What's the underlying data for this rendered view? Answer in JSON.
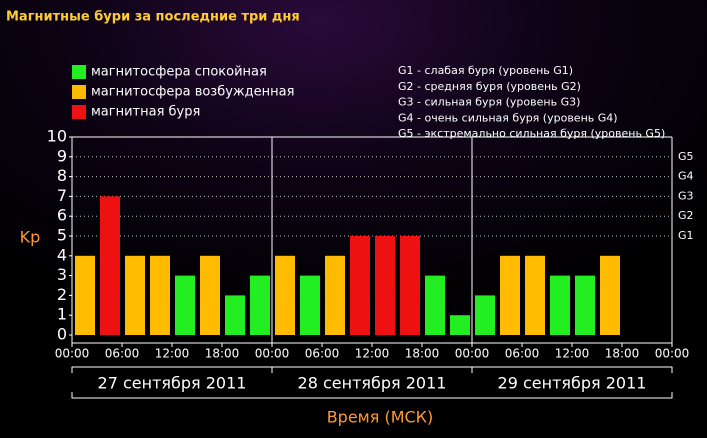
{
  "chart_data": {
    "type": "bar",
    "title": "Магнитные бури за последние три дня",
    "legend": [
      {
        "name": "магнитосфера спокойная",
        "color": "#22ee22"
      },
      {
        "name": "магнитосфера возбужденная",
        "color": "#ffbb00"
      },
      {
        "name": "магнитная буря",
        "color": "#ee1111"
      }
    ],
    "notes": [
      "G1 - слабая буря (уровень G1)",
      "G2 - средняя буря (уровень G2)",
      "G3 - сильная буря (уровень G3)",
      "G4 - очень сильная буря (уровень G4)",
      "G5 - экстремально сильная буря (уровень G5)"
    ],
    "y_label": "Kp",
    "x_label": "Время (МСК)",
    "days": [
      "27 сентября 2011",
      "28 сентября 2011",
      "29 сентября 2011"
    ],
    "categories": [
      null,
      null,
      null,
      null,
      null,
      null,
      null,
      null,
      null,
      null,
      null,
      null,
      null,
      null,
      null,
      null,
      null,
      null,
      null,
      null,
      null,
      null,
      null,
      null
    ],
    "values": [
      4,
      7,
      4,
      4,
      3,
      4,
      2,
      3,
      4,
      3,
      4,
      5,
      5,
      5,
      3,
      1,
      2,
      4,
      4,
      3,
      3,
      4,
      null,
      null
    ],
    "colors": [
      "#ffbb00",
      "#ee1111",
      "#ffbb00",
      "#ffbb00",
      "#22ee22",
      "#ffbb00",
      "#22ee22",
      "#22ee22",
      "#ffbb00",
      "#22ee22",
      "#ffbb00",
      "#ee1111",
      "#ee1111",
      "#ee1111",
      "#22ee22",
      "#22ee22",
      "#22ee22",
      "#ffbb00",
      "#ffbb00",
      "#22ee22",
      "#22ee22",
      "#ffbb00",
      null,
      null
    ],
    "xlim": [
      0,
      24
    ],
    "xticks": [
      {
        "value": 0,
        "label": "00:00"
      },
      {
        "value": 2,
        "label": "06:00"
      },
      {
        "value": 4,
        "label": "12:00"
      },
      {
        "value": 6,
        "label": "18:00"
      },
      {
        "value": 8,
        "label": "00:00"
      },
      {
        "value": 10,
        "label": "06:00"
      },
      {
        "value": 12,
        "label": "12:00"
      },
      {
        "value": 14,
        "label": "18:00"
      },
      {
        "value": 16,
        "label": "00:00"
      },
      {
        "value": 18,
        "label": "06:00"
      },
      {
        "value": 20,
        "label": "12:00"
      },
      {
        "value": 22,
        "label": "18:00"
      },
      {
        "value": 24,
        "label": "00:00"
      }
    ],
    "ylim": [
      0,
      10
    ],
    "yticks": [
      0,
      1,
      2,
      3,
      4,
      5,
      6,
      7,
      8,
      9,
      10
    ],
    "y2lim": [
      0,
      10
    ],
    "y2ticks": [
      {
        "value": 5,
        "label": "G1"
      },
      {
        "value": 6,
        "label": "G2"
      },
      {
        "value": 7,
        "label": "G3"
      },
      {
        "value": 8,
        "label": "G4"
      },
      {
        "value": 9,
        "label": "G5"
      }
    ],
    "grid": true
  }
}
